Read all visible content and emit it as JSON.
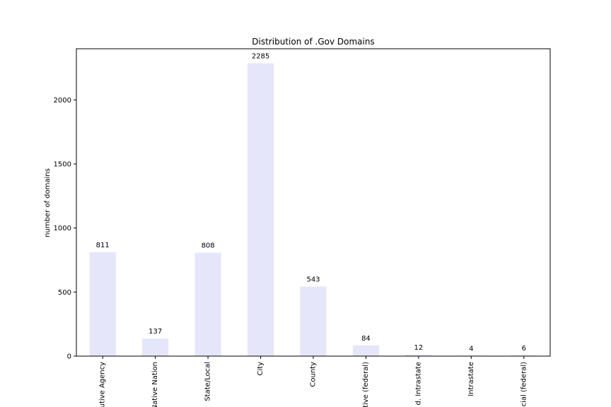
{
  "chart_data": {
    "type": "bar",
    "title": "Distribution of .Gov Domains",
    "xlabel": "",
    "ylabel": "number of domains",
    "categories": [
      "utive Agency",
      "Native Nation",
      "State/Local",
      "City",
      "County",
      "tive (federal)",
      "d. Intrastate",
      "Intrastate",
      "cial (federal)"
    ],
    "values": [
      811,
      137,
      808,
      2285,
      543,
      84,
      12,
      4,
      6
    ],
    "data_labels": [
      "811",
      "137",
      "808",
      "2285",
      "543",
      "84",
      "12",
      "4",
      "6"
    ],
    "yticks": [
      0,
      500,
      1000,
      1500,
      2000
    ],
    "ytick_labels": [
      "0",
      "500",
      "1000",
      "1500",
      "2000"
    ],
    "ylim": [
      0,
      2399
    ],
    "bar_color": "#e6e6fa",
    "grid": false,
    "legend": "none"
  }
}
